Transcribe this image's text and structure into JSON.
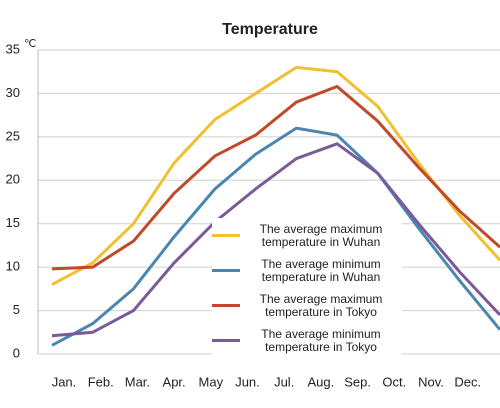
{
  "chart_data": {
    "type": "line",
    "title": "Temperature",
    "y_label": "℃",
    "categories": [
      "Jan.",
      "Feb.",
      "Mar.",
      "Apr.",
      "May",
      "Jun.",
      "Jul.",
      "Aug.",
      "Sep.",
      "Oct.",
      "Nov.",
      "Dec."
    ],
    "series": [
      {
        "name": "The average maximum temperature in Wuhan",
        "color": "#f0c030",
        "values": [
          8,
          10.5,
          15,
          22,
          27,
          30,
          33,
          32.5,
          28.5,
          22,
          16,
          10.8
        ]
      },
      {
        "name": "The average minimum temperature in Wuhan",
        "color": "#4a86b0",
        "values": [
          1,
          3.5,
          7.5,
          13.5,
          19,
          23,
          26,
          25.2,
          20.8,
          14.5,
          8.5,
          2.8
        ]
      },
      {
        "name": "The average maximum temperature in Tokyo",
        "color": "#c0492a",
        "values": [
          9.8,
          10,
          13,
          18.5,
          22.8,
          25.2,
          29,
          30.8,
          26.8,
          21.5,
          16.5,
          12.3
        ]
      },
      {
        "name": "The average minimum temperature in Tokyo",
        "color": "#7b5a9a",
        "values": [
          2.1,
          2.5,
          5,
          10.5,
          15.2,
          19,
          22.5,
          24.2,
          20.8,
          15,
          9.5,
          4.5
        ]
      }
    ],
    "ylim": [
      0,
      35
    ],
    "yticks": [
      0,
      5,
      10,
      15,
      20,
      25,
      30,
      35
    ],
    "grid": true
  }
}
